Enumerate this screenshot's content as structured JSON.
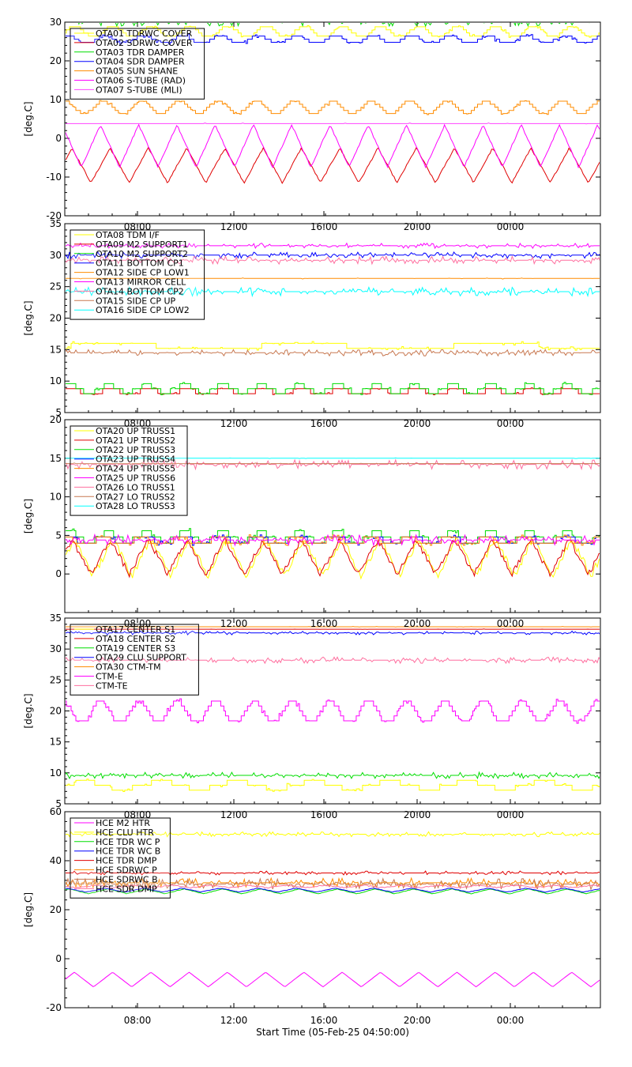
{
  "footer_label": "Start Time (05-Feb-25 04:50:00)",
  "x_ticks": [
    "08:00",
    "12:00",
    "16:00",
    "20:00",
    "00:00"
  ],
  "chart_data": [
    {
      "type": "line",
      "ylabel": "[deg.C]",
      "ylim": [
        -20,
        30
      ],
      "yticks": [
        -20,
        -10,
        0,
        10,
        20,
        30
      ],
      "xlim": [
        0,
        22.4
      ],
      "legend_position": "top-left",
      "series": [
        {
          "name": "OTA01 TDRWC COVER",
          "color": "#ffff00",
          "pattern": "steps",
          "base": 27.5,
          "amp": 1.5,
          "period": 1.6,
          "noise": 0.4
        },
        {
          "name": "OTA02 SDRWC COVER",
          "color": "#e00000",
          "pattern": "wave",
          "base": -7,
          "amp": 4.5,
          "period": 1.6,
          "noise": 0.2
        },
        {
          "name": "OTA03 TDR DAMPER",
          "color": "#00dd00",
          "pattern": "noise",
          "base": 30,
          "amp": 0,
          "period": 1,
          "noise": 1.0
        },
        {
          "name": "OTA04 SDR DAMPER",
          "color": "#0000ff",
          "pattern": "steps",
          "base": 25.5,
          "amp": 1.0,
          "period": 1.6,
          "noise": 0.5
        },
        {
          "name": "OTA05 SUN SHANE",
          "color": "#ff8c00",
          "pattern": "steps",
          "base": 8,
          "amp": 1.6,
          "period": 1.6,
          "noise": 0.3
        },
        {
          "name": "OTA06 S-TUBE (RAD)",
          "color": "#ff00ff",
          "pattern": "wave",
          "base": -2,
          "amp": 5.5,
          "period": 1.6,
          "noise": 0.2
        },
        {
          "name": "OTA07 S-TUBE (MLI)",
          "color": "#ff44ff",
          "pattern": "flat",
          "base": 3.8,
          "amp": 0,
          "period": 1,
          "noise": 0.2
        }
      ]
    },
    {
      "type": "line",
      "ylabel": "[deg.C]",
      "ylim": [
        5,
        35
      ],
      "yticks": [
        5,
        10,
        15,
        20,
        25,
        30,
        35
      ],
      "xlim": [
        0,
        22.4
      ],
      "legend_position": "top-left",
      "series": [
        {
          "name": "OTA08 TDM I/F",
          "color": "#ffff00",
          "pattern": "steps",
          "base": 15.5,
          "amp": 0.6,
          "period": 8,
          "noise": 0.3
        },
        {
          "name": "OTA09 M2 SUPPORT1",
          "color": "#e00000",
          "pattern": "steps",
          "base": 8.3,
          "amp": 0.5,
          "period": 1.6,
          "noise": 0.2
        },
        {
          "name": "OTA10 M2 SUPPORT2",
          "color": "#00dd00",
          "pattern": "steps",
          "base": 8.8,
          "amp": 0.6,
          "period": 1.6,
          "noise": 0.2
        },
        {
          "name": "OTA11 BOTTOM CP1",
          "color": "#0000ff",
          "pattern": "noise",
          "base": 30,
          "amp": 0,
          "period": 1,
          "noise": 0.5
        },
        {
          "name": "OTA12 SIDE CP LOW1",
          "color": "#ff8c00",
          "pattern": "flat",
          "base": 26.3,
          "amp": 0,
          "period": 1,
          "noise": 0.1
        },
        {
          "name": "OTA13 MIRROR CELL",
          "color": "#ff00ff",
          "pattern": "noise",
          "base": 31.5,
          "amp": 0,
          "period": 1,
          "noise": 0.4
        },
        {
          "name": "OTA14 BOTTOM CP2",
          "color": "#ff6f9f",
          "pattern": "noise",
          "base": 29.2,
          "amp": 0,
          "period": 1,
          "noise": 0.6
        },
        {
          "name": "OTA15 SIDE CP UP",
          "color": "#c87850",
          "pattern": "noise",
          "base": 14.5,
          "amp": 0,
          "period": 1,
          "noise": 0.5
        },
        {
          "name": "OTA16 SIDE CP LOW2",
          "color": "#00ffff",
          "pattern": "noise",
          "base": 24.2,
          "amp": 0,
          "period": 1,
          "noise": 0.7
        }
      ]
    },
    {
      "type": "line",
      "ylabel": "[deg.C]",
      "ylim": [
        -5,
        20
      ],
      "yticks": [
        0,
        5,
        10,
        15,
        20
      ],
      "xlim": [
        0,
        22.4
      ],
      "legend_position": "top-left",
      "series": [
        {
          "name": "OTA20 UP TRUSS1",
          "color": "#ffff00",
          "pattern": "wave",
          "base": 2.2,
          "amp": 2.5,
          "period": 1.6,
          "noise": 0.5
        },
        {
          "name": "OTA21 UP TRUSS2",
          "color": "#e00000",
          "pattern": "wave",
          "base": 2.2,
          "amp": 2.3,
          "period": 1.6,
          "noise": 0.4
        },
        {
          "name": "OTA22 UP TRUSS3",
          "color": "#00dd00",
          "pattern": "steps",
          "base": 4.8,
          "amp": 0.6,
          "period": 1.6,
          "noise": 0.3
        },
        {
          "name": "OTA23 UP TRUSS4",
          "color": "#0000ff",
          "pattern": "steps",
          "base": 4.4,
          "amp": 0.5,
          "period": 1.6,
          "noise": 0.3
        },
        {
          "name": "OTA24 UP TRUSS5",
          "color": "#ff8c00",
          "pattern": "steps",
          "base": 4.2,
          "amp": 0.5,
          "period": 1.6,
          "noise": 0.3
        },
        {
          "name": "OTA25 UP TRUSS6",
          "color": "#ff00ff",
          "pattern": "noise",
          "base": 4.4,
          "amp": 0,
          "period": 1,
          "noise": 0.7
        },
        {
          "name": "OTA26 LO TRUSS1",
          "color": "#ff6f9f",
          "pattern": "noise",
          "base": 14.2,
          "amp": 0,
          "period": 1,
          "noise": 0.6
        },
        {
          "name": "OTA27 LO TRUSS2",
          "color": "#c87850",
          "pattern": "flat",
          "base": 14.3,
          "amp": 0,
          "period": 1,
          "noise": 0.1
        },
        {
          "name": "OTA28 LO TRUSS3",
          "color": "#00ffff",
          "pattern": "flat",
          "base": 15,
          "amp": 0,
          "period": 1,
          "noise": 0.05
        }
      ]
    },
    {
      "type": "line",
      "ylabel": "[deg.C]",
      "ylim": [
        5,
        35
      ],
      "yticks": [
        5,
        10,
        15,
        20,
        25,
        30,
        35
      ],
      "xlim": [
        0,
        22.4
      ],
      "legend_position": "top-left",
      "series": [
        {
          "name": "OTA17 CENTER S1",
          "color": "#ffff00",
          "pattern": "steps",
          "base": 8,
          "amp": 0.6,
          "period": 3.2,
          "noise": 0.3
        },
        {
          "name": "OTA18 CENTER S2",
          "color": "#e00000",
          "pattern": "flat",
          "base": 33.2,
          "amp": 0,
          "period": 1,
          "noise": 0.05
        },
        {
          "name": "OTA19 CENTER S3",
          "color": "#00dd00",
          "pattern": "noise",
          "base": 9.6,
          "amp": 0,
          "period": 1,
          "noise": 0.5
        },
        {
          "name": "OTA29 CLU SUPPORT",
          "color": "#0000ff",
          "pattern": "noise",
          "base": 32.6,
          "amp": 0,
          "period": 1,
          "noise": 0.3
        },
        {
          "name": "OTA30 CTM-TM",
          "color": "#ff8c00",
          "pattern": "flat",
          "base": 33.6,
          "amp": 0,
          "period": 1,
          "noise": 0.05
        },
        {
          "name": "CTM-E",
          "color": "#ff00ff",
          "pattern": "steps",
          "base": 19.8,
          "amp": 1.8,
          "period": 1.6,
          "noise": 0.4
        },
        {
          "name": "CTM-TE",
          "color": "#ff6f9f",
          "pattern": "noise",
          "base": 28.2,
          "amp": 0,
          "period": 1,
          "noise": 0.5
        }
      ]
    },
    {
      "type": "line",
      "ylabel": "[deg.C]",
      "ylim": [
        -20,
        60
      ],
      "yticks": [
        -20,
        0,
        20,
        40,
        60
      ],
      "xlim": [
        0,
        22.4
      ],
      "legend_position": "top-left",
      "series": [
        {
          "name": "HCE M2 HTR",
          "color": "#ff00ff",
          "pattern": "wave",
          "base": -8.5,
          "amp": 3,
          "period": 1.6,
          "noise": 0
        },
        {
          "name": "HCE CLU HTR",
          "color": "#ffff00",
          "pattern": "noise",
          "base": 50.8,
          "amp": 0,
          "period": 1,
          "noise": 1.0
        },
        {
          "name": "HCE TDR WC P",
          "color": "#00dd00",
          "pattern": "wave",
          "base": 27.5,
          "amp": 1,
          "period": 1.6,
          "noise": 0.1
        },
        {
          "name": "HCE TDR WC B",
          "color": "#0000ff",
          "pattern": "wave",
          "base": 28,
          "amp": 0.8,
          "period": 1.6,
          "noise": 0.1
        },
        {
          "name": "HCE TDR DMP",
          "color": "#e00000",
          "pattern": "noise",
          "base": 35,
          "amp": 0,
          "period": 1,
          "noise": 0.8
        },
        {
          "name": "HCE SDRWC P",
          "color": "#ff8c00",
          "pattern": "noise",
          "base": 31,
          "amp": 0,
          "period": 1,
          "noise": 2.0
        },
        {
          "name": "HCE SDRWC B",
          "color": "#c87850",
          "pattern": "noise",
          "base": 30.5,
          "amp": 0,
          "period": 1,
          "noise": 2.2
        },
        {
          "name": "HCE SDR DMP",
          "color": "#ff6f9f",
          "pattern": "wave",
          "base": 29.5,
          "amp": 0.5,
          "period": 1.6,
          "noise": 0.2
        }
      ]
    }
  ]
}
